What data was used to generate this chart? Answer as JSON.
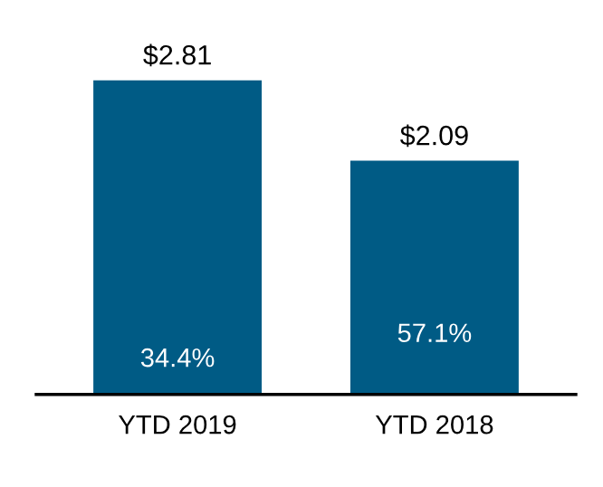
{
  "chart_data": {
    "type": "bar",
    "categories": [
      "YTD 2019",
      "YTD 2018"
    ],
    "values": [
      2.81,
      2.09
    ],
    "color": "#005b85",
    "value_labels": [
      "$2.81",
      "$2.09"
    ],
    "annotations": [
      "34.4%",
      "57.1%"
    ],
    "grid": false
  }
}
